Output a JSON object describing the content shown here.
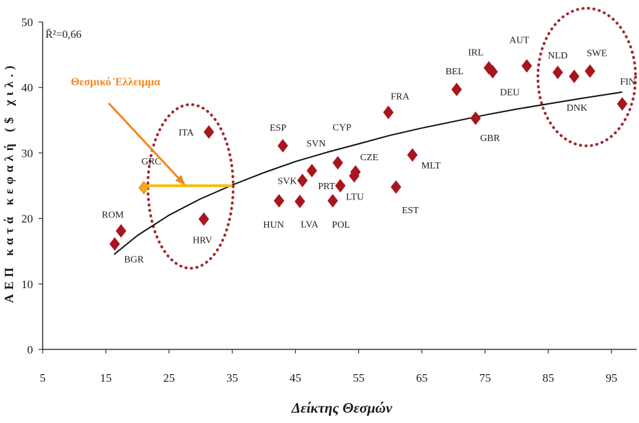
{
  "chart_data": {
    "type": "scatter",
    "title": "",
    "xlabel": "Δείκτης Θεσμών",
    "ylabel": "ΑΕΠ κατά κεφαλή ($ χιλ.)",
    "xlim": [
      5,
      99
    ],
    "ylim": [
      0,
      50
    ],
    "xticks": [
      5,
      15,
      25,
      35,
      45,
      55,
      65,
      75,
      85,
      95
    ],
    "yticks": [
      0,
      10,
      20,
      30,
      40,
      50
    ],
    "grid": false,
    "legend": "none",
    "r2_label": "R̄²=0,66",
    "points": [
      {
        "label": "ROM",
        "x": 17.4,
        "y": 18.1
      },
      {
        "label": "BGR",
        "x": 16.4,
        "y": 16.1
      },
      {
        "label": "GRC",
        "x": 21.0,
        "y": 24.7,
        "highlight": true
      },
      {
        "label": "ITA",
        "x": 31.3,
        "y": 33.2
      },
      {
        "label": "HRV",
        "x": 30.5,
        "y": 19.9
      },
      {
        "label": "ESP",
        "x": 43.0,
        "y": 31.1
      },
      {
        "label": "HUN",
        "x": 42.4,
        "y": 22.7
      },
      {
        "label": "SVK",
        "x": 46.1,
        "y": 25.8
      },
      {
        "label": "LVA",
        "x": 45.7,
        "y": 22.6
      },
      {
        "label": "SVN",
        "x": 47.6,
        "y": 27.3
      },
      {
        "label": "CYP",
        "x": 51.7,
        "y": 28.5
      },
      {
        "label": "PRT",
        "x": 52.1,
        "y": 25.0
      },
      {
        "label": "POL",
        "x": 50.9,
        "y": 22.7
      },
      {
        "label": "CZE",
        "x": 54.5,
        "y": 27.1
      },
      {
        "label": "LTU",
        "x": 54.3,
        "y": 26.5
      },
      {
        "label": "FRA",
        "x": 59.7,
        "y": 36.2
      },
      {
        "label": "EST",
        "x": 60.9,
        "y": 24.8
      },
      {
        "label": "MLT",
        "x": 63.5,
        "y": 29.7
      },
      {
        "label": "BEL",
        "x": 70.5,
        "y": 39.7
      },
      {
        "label": "GBR",
        "x": 73.5,
        "y": 35.3
      },
      {
        "label": "IRL",
        "x": 75.6,
        "y": 43.0
      },
      {
        "label": "DEU",
        "x": 76.2,
        "y": 42.4
      },
      {
        "label": "AUT",
        "x": 81.6,
        "y": 43.3
      },
      {
        "label": "NLD",
        "x": 86.5,
        "y": 42.3
      },
      {
        "label": "DNK",
        "x": 89.1,
        "y": 41.7
      },
      {
        "label": "SWE",
        "x": 91.6,
        "y": 42.5
      },
      {
        "label": "FIN",
        "x": 96.7,
        "y": 37.5
      }
    ],
    "trendline": {
      "points": [
        [
          16.3,
          14.5
        ],
        [
          20,
          17.4
        ],
        [
          25,
          20.5
        ],
        [
          30,
          23.0
        ],
        [
          35,
          25.1
        ],
        [
          40,
          27.0
        ],
        [
          45,
          28.7
        ],
        [
          50,
          30.1
        ],
        [
          55,
          31.4
        ],
        [
          60,
          32.7
        ],
        [
          65,
          33.8
        ],
        [
          70,
          34.8
        ],
        [
          75,
          35.8
        ],
        [
          80,
          36.7
        ],
        [
          85,
          37.5
        ],
        [
          90,
          38.3
        ],
        [
          96.7,
          39.3
        ]
      ]
    },
    "gap_annotation": {
      "label": "Θεσμικό Έλλειμμα",
      "from": {
        "x": 21.0,
        "y": 25.0
      },
      "to": {
        "x": 35.0,
        "y": 25.0
      }
    },
    "colors": {
      "points": "#a8161d",
      "highlight_point": "#f6a81e",
      "highlight_point_stroke": "#e08a12",
      "trendline": "#111111",
      "gap_line": "#f7bd15",
      "annotation": "#f2871d",
      "circles": "#a0282e",
      "axes": "#333333"
    }
  }
}
